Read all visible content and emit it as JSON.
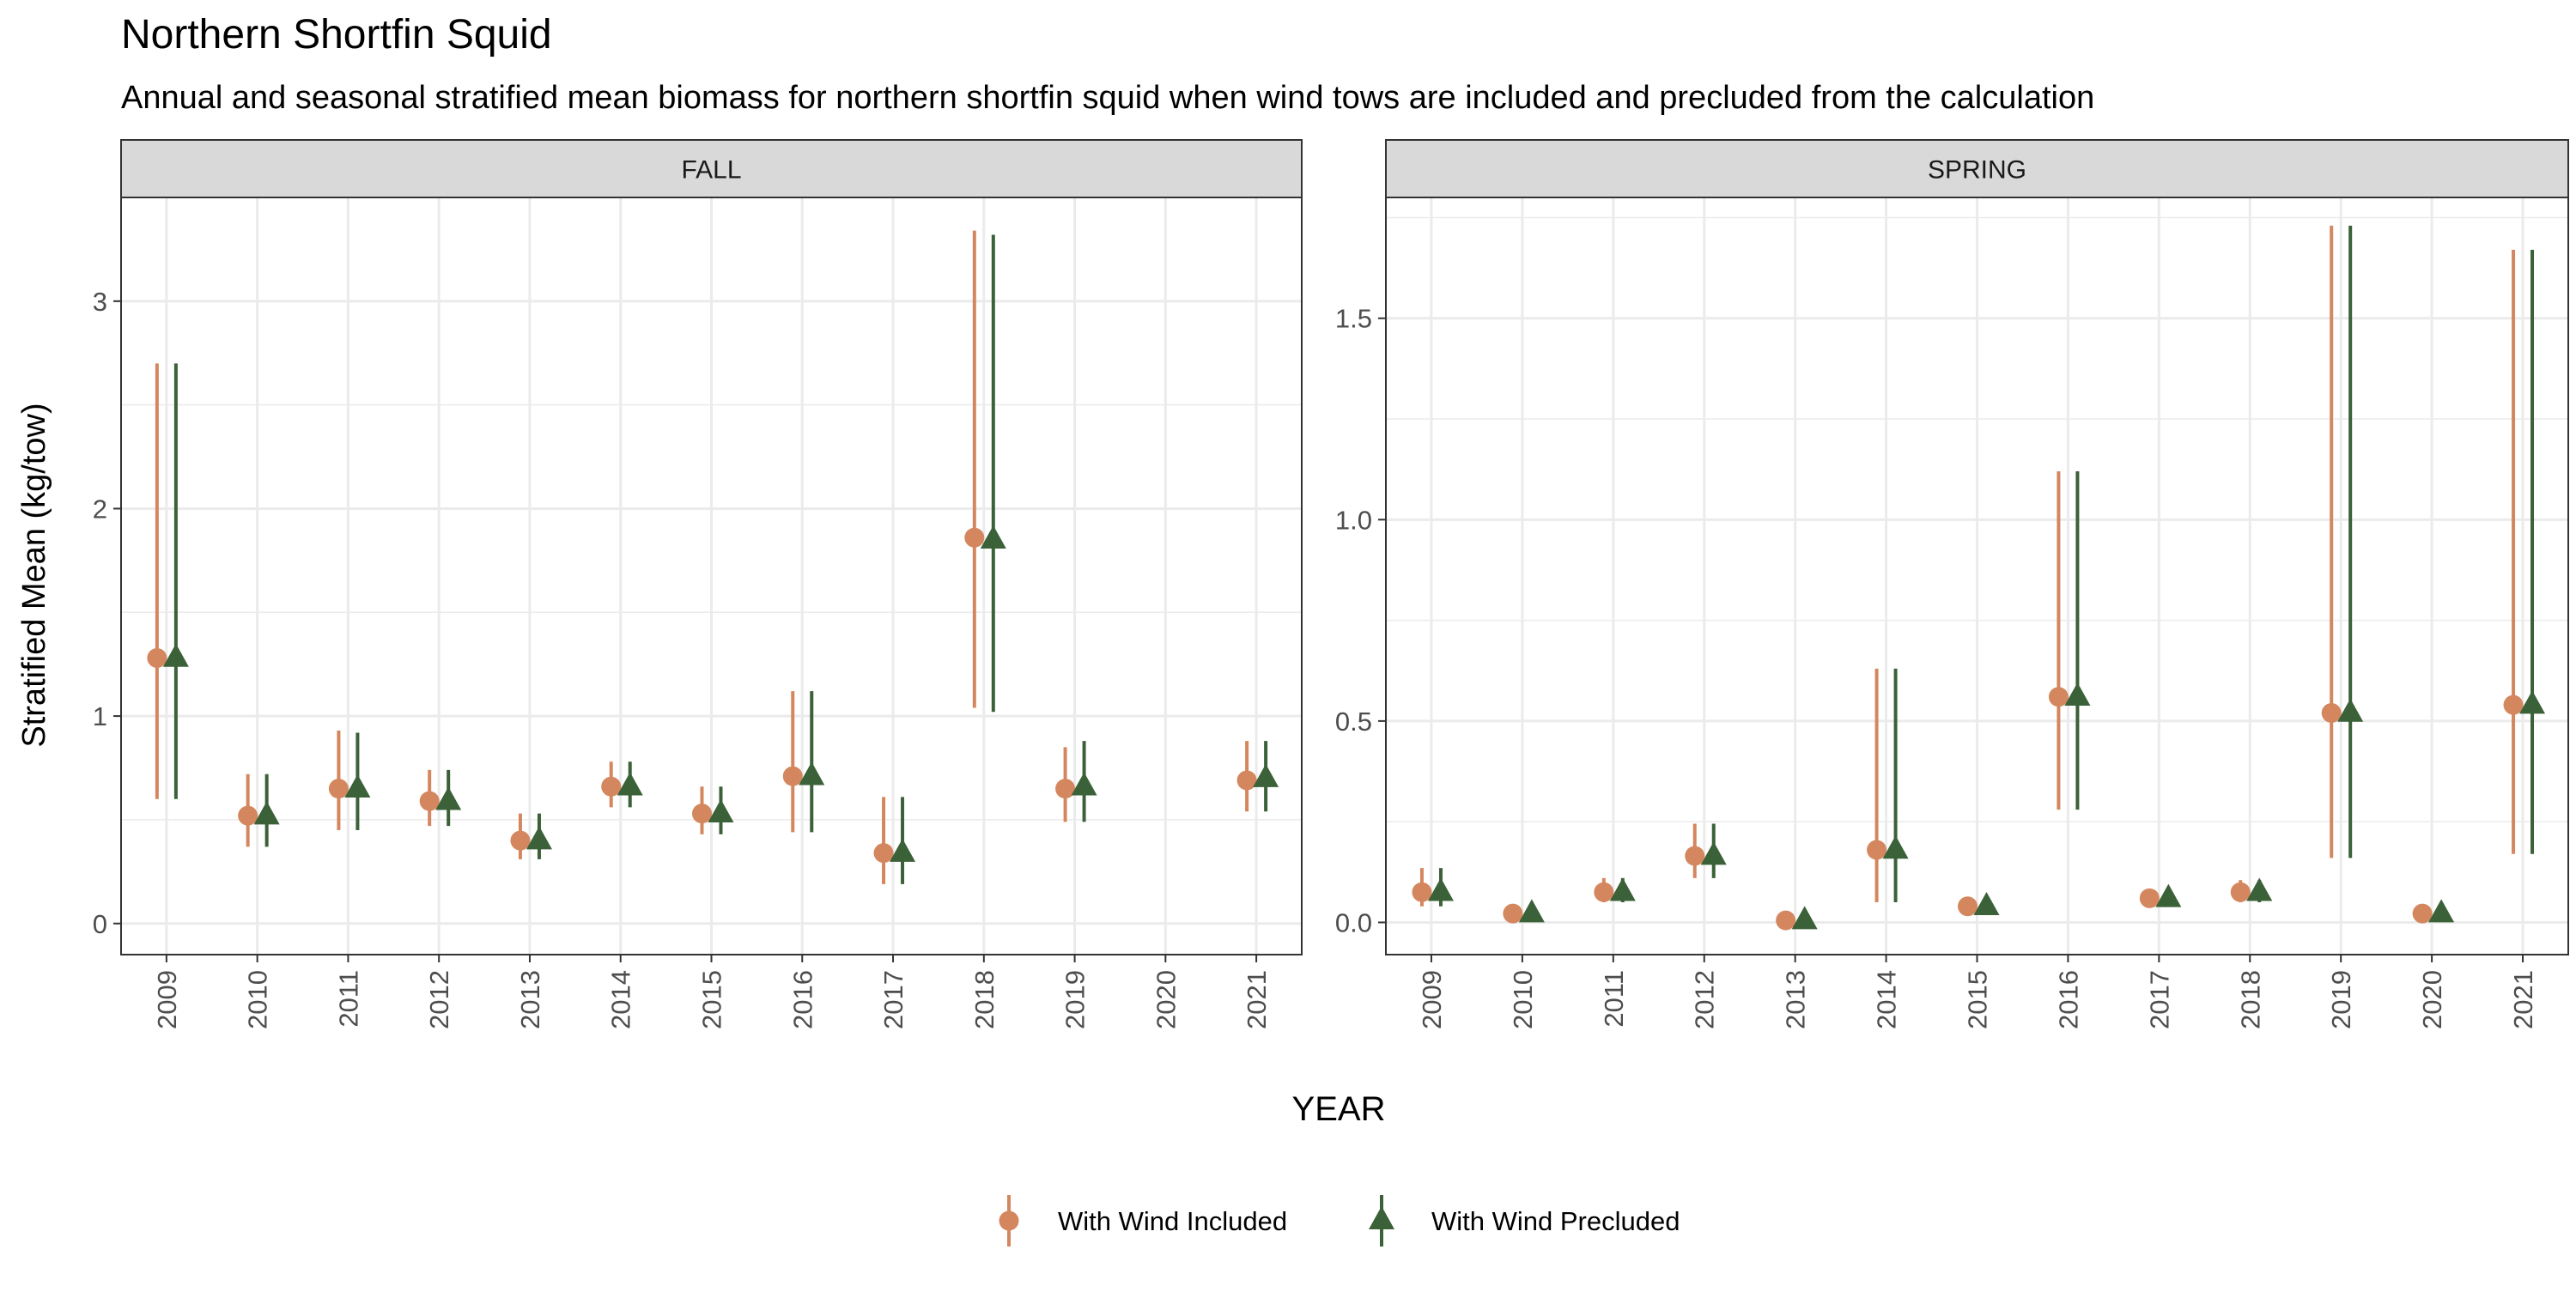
{
  "chart_data": {
    "type": "scatter",
    "title": "Northern Shortfin Squid",
    "subtitle": "Annual and seasonal stratified mean biomass for northern shortfin squid when wind tows are included and precluded from the calculation",
    "xlabel": "YEAR",
    "ylabel": "Stratified Mean (kg/tow)",
    "legend_position": "bottom",
    "grid": true,
    "colors": {
      "included": "#D4875E",
      "precluded": "#3B6138",
      "strip_bg": "#D9D9D9",
      "grid": "#EBEBEB"
    },
    "legend": [
      {
        "key": "included",
        "label": "With Wind Included",
        "shape": "circle"
      },
      {
        "key": "precluded",
        "label": "With Wind Precluded",
        "shape": "triangle"
      }
    ],
    "categories": [
      "2009",
      "2010",
      "2011",
      "2012",
      "2013",
      "2014",
      "2015",
      "2016",
      "2017",
      "2018",
      "2019",
      "2020",
      "2021"
    ],
    "panels": [
      {
        "name": "FALL",
        "ylim": [
          -0.15,
          3.5
        ],
        "yticks": [
          0,
          1,
          2,
          3
        ],
        "ytick_labels": [
          "0",
          "1",
          "2",
          "3"
        ],
        "series": [
          {
            "key": "included",
            "name": "With Wind Included",
            "mean": [
              1.28,
              0.52,
              0.65,
              0.59,
              0.4,
              0.66,
              0.53,
              0.71,
              0.34,
              1.86,
              0.65,
              null,
              0.69
            ],
            "lower": [
              0.6,
              0.37,
              0.45,
              0.47,
              0.31,
              0.56,
              0.43,
              0.44,
              0.19,
              1.04,
              0.49,
              null,
              0.54
            ],
            "upper": [
              2.7,
              0.72,
              0.93,
              0.74,
              0.53,
              0.78,
              0.66,
              1.12,
              0.61,
              3.34,
              0.85,
              null,
              0.88
            ]
          },
          {
            "key": "precluded",
            "name": "With Wind Precluded",
            "mean": [
              1.28,
              0.52,
              0.65,
              0.59,
              0.4,
              0.66,
              0.53,
              0.71,
              0.34,
              1.85,
              0.66,
              null,
              0.7
            ],
            "lower": [
              0.6,
              0.37,
              0.45,
              0.47,
              0.31,
              0.56,
              0.43,
              0.44,
              0.19,
              1.02,
              0.49,
              null,
              0.54
            ],
            "upper": [
              2.7,
              0.72,
              0.92,
              0.74,
              0.53,
              0.78,
              0.66,
              1.12,
              0.61,
              3.32,
              0.88,
              null,
              0.88
            ]
          }
        ]
      },
      {
        "name": "SPRING",
        "ylim": [
          -0.08,
          1.8
        ],
        "yticks": [
          0,
          0.5,
          1.0,
          1.5
        ],
        "ytick_labels": [
          "0.0",
          "0.5",
          "1.0",
          "1.5"
        ],
        "series": [
          {
            "key": "included",
            "name": "With Wind Included",
            "mean": [
              0.075,
              0.022,
              0.075,
              0.165,
              0.005,
              0.18,
              0.04,
              0.56,
              0.06,
              0.075,
              0.52,
              0.022,
              0.54
            ],
            "lower": [
              0.04,
              0.015,
              0.05,
              0.11,
              0.002,
              0.05,
              0.03,
              0.28,
              0.045,
              0.05,
              0.16,
              0.015,
              0.17
            ],
            "upper": [
              0.135,
              0.03,
              0.11,
              0.245,
              0.01,
              0.63,
              0.055,
              1.12,
              0.08,
              0.105,
              1.73,
              0.03,
              1.67
            ]
          },
          {
            "key": "precluded",
            "name": "With Wind Precluded",
            "mean": [
              0.075,
              0.022,
              0.075,
              0.165,
              0.005,
              0.18,
              0.04,
              0.56,
              0.06,
              0.075,
              0.52,
              0.022,
              0.54
            ],
            "lower": [
              0.04,
              0.015,
              0.05,
              0.11,
              0.002,
              0.05,
              0.03,
              0.28,
              0.045,
              0.05,
              0.16,
              0.015,
              0.17
            ],
            "upper": [
              0.135,
              0.03,
              0.11,
              0.245,
              0.01,
              0.63,
              0.055,
              1.12,
              0.08,
              0.105,
              1.73,
              0.03,
              1.67
            ]
          }
        ]
      }
    ]
  }
}
